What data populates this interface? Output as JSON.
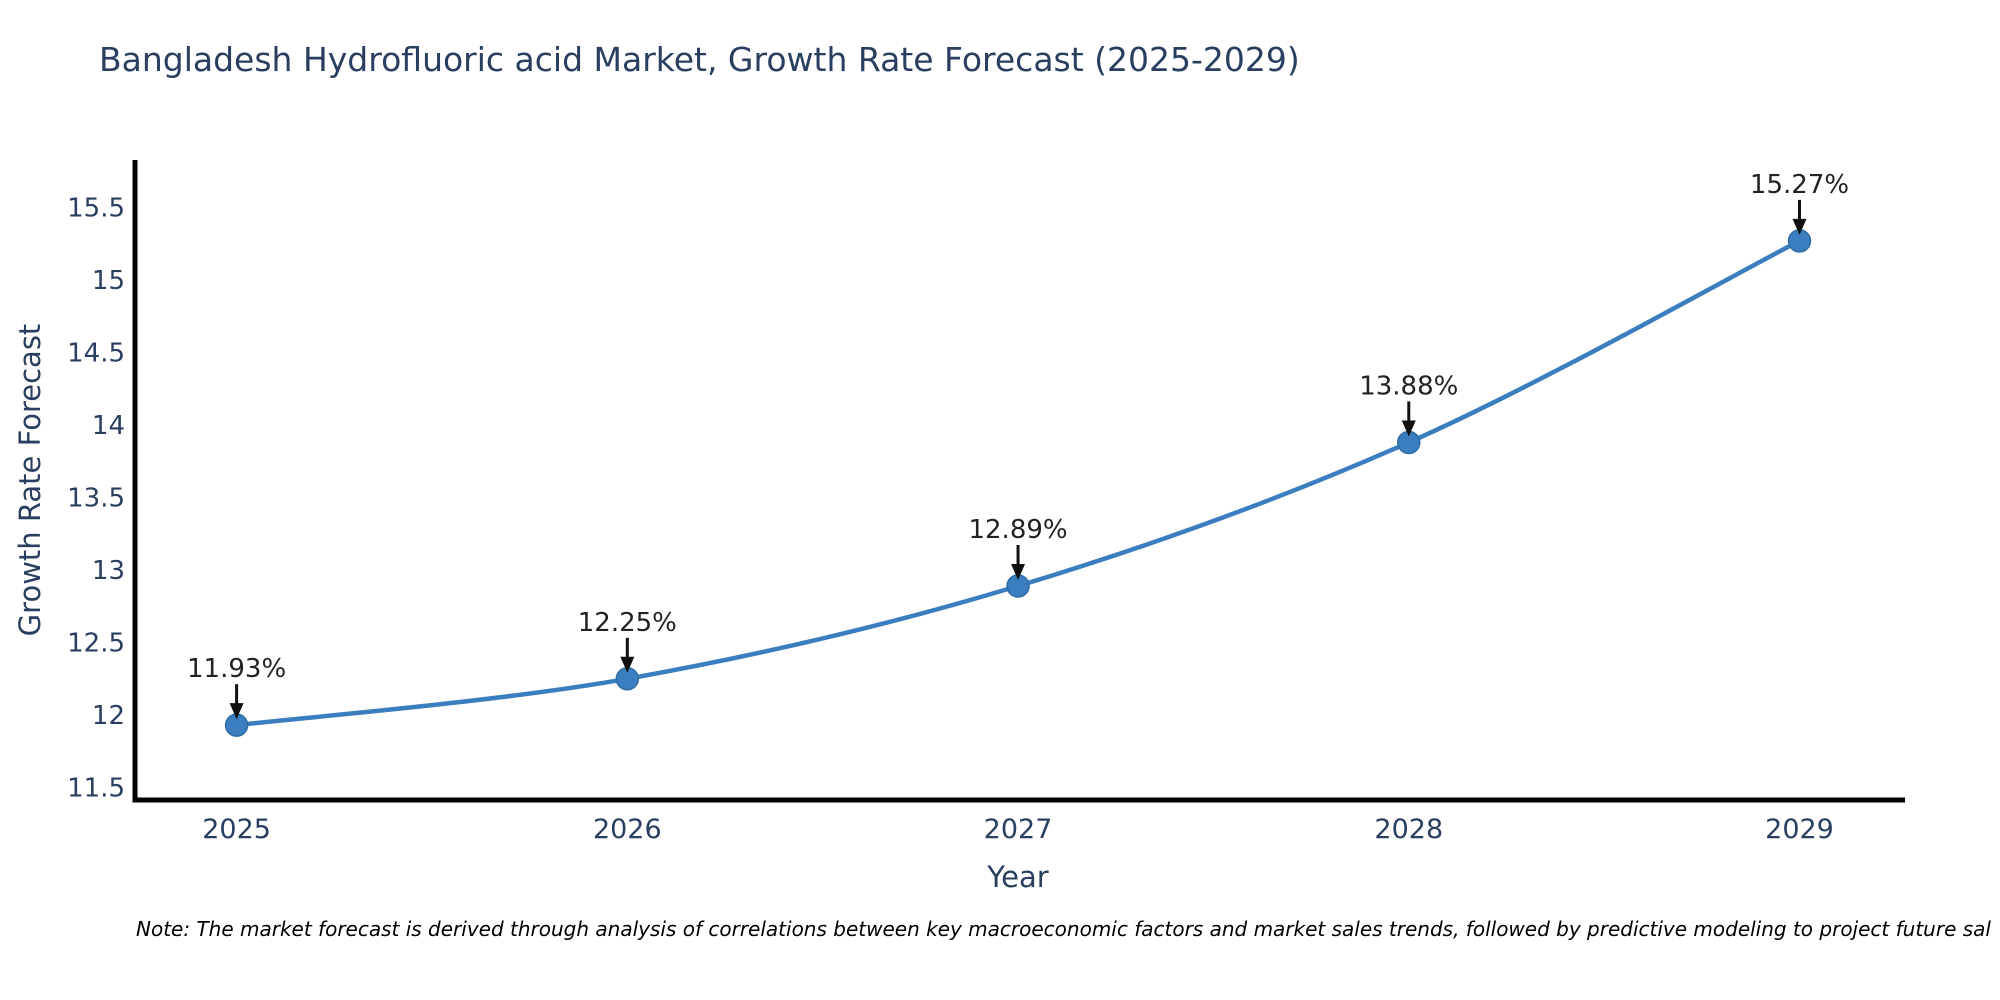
{
  "chart_data": {
    "type": "line",
    "title": "Bangladesh Hydrofluoric acid Market, Growth Rate Forecast (2025-2029)",
    "xlabel": "Year",
    "ylabel": "Growth Rate Forecast",
    "x": [
      2025,
      2026,
      2027,
      2028,
      2029
    ],
    "y": [
      11.93,
      12.25,
      12.89,
      13.88,
      15.27
    ],
    "point_labels": [
      "11.93%",
      "12.25%",
      "12.89%",
      "13.88%",
      "15.27%"
    ],
    "xticks": [
      2025,
      2026,
      2027,
      2028,
      2029
    ],
    "yticks": [
      11.5,
      12,
      12.5,
      13,
      13.5,
      14,
      14.5,
      15,
      15.5
    ],
    "xlim": [
      2024.74,
      2029.27
    ],
    "ylim": [
      11.414,
      15.828
    ],
    "grid": false,
    "legend": "none",
    "line_color": "#3a7ebf",
    "marker_color": "#3a7ebf",
    "marker_edge_color": "#2e6da4",
    "axis_line_color": "#000000",
    "tick_text_color": "#2a3f5f",
    "annotation_text_color": "#222222",
    "annotation_arrow_color": "#111111"
  },
  "note": {
    "text": "Note: The market forecast is derived through analysis of correlations between key macroeconomic factors and market sales trends, followed by predictive modeling to project future sal"
  }
}
